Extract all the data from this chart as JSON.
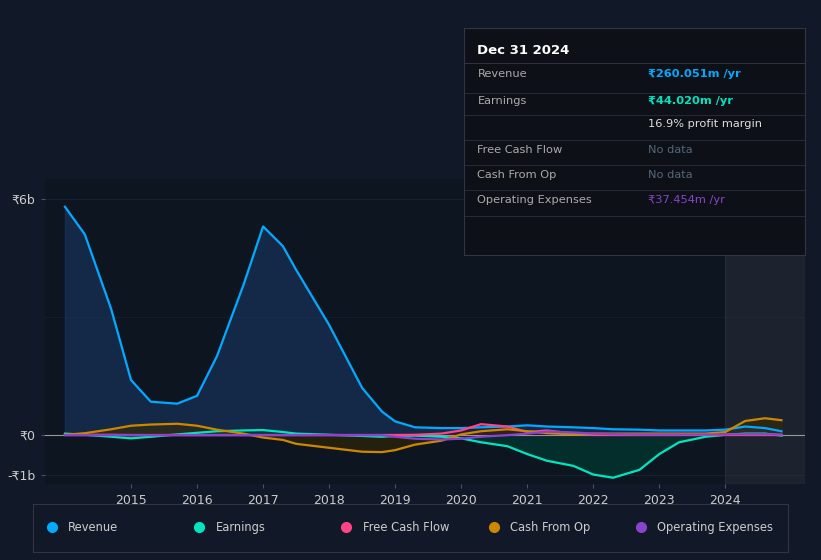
{
  "bg_color": "#111827",
  "plot_bg_color": "#0d1520",
  "grid_color": "#2a3a4a",
  "zero_line_color": "#aaaaaa",
  "ylim": [
    -1250000000.0,
    6500000000.0
  ],
  "xlim": [
    2013.7,
    2025.2
  ],
  "ytick_labels": [
    "-₹1b",
    "₹0",
    "₹6b"
  ],
  "ytick_values": [
    -1000000000.0,
    0,
    6000000000.0
  ],
  "xtick_labels": [
    "2015",
    "2016",
    "2017",
    "2018",
    "2019",
    "2020",
    "2021",
    "2022",
    "2023",
    "2024"
  ],
  "xtick_positions": [
    2015,
    2016,
    2017,
    2018,
    2019,
    2020,
    2021,
    2022,
    2023,
    2024
  ],
  "series": {
    "revenue": {
      "color": "#00aaff",
      "fill_color": "#1a3a6a",
      "label": "Revenue"
    },
    "earnings": {
      "color": "#00e5c0",
      "fill_color": "#003a30",
      "label": "Earnings"
    },
    "fcf": {
      "color": "#ff4488",
      "fill_color": "#3a1530",
      "label": "Free Cash Flow"
    },
    "cashfromop": {
      "color": "#cc8800",
      "fill_color": "#3a2a00",
      "label": "Cash From Op"
    },
    "opex": {
      "color": "#8844cc",
      "fill_color": "#2a1040",
      "label": "Operating Expenses"
    }
  },
  "infobox": {
    "title": "Dec 31 2024",
    "rows": [
      {
        "label": "Revenue",
        "value": "₹260.051m /yr",
        "value_color": "#00aaff",
        "bold": true
      },
      {
        "label": "Earnings",
        "value": "₹44.020m /yr",
        "value_color": "#00e5c0",
        "bold": true
      },
      {
        "label": "",
        "value": "16.9% profit margin",
        "value_color": "#dddddd",
        "bold": false
      },
      {
        "label": "Free Cash Flow",
        "value": "No data",
        "value_color": "#556677",
        "bold": false
      },
      {
        "label": "Cash From Op",
        "value": "No data",
        "value_color": "#556677",
        "bold": false
      },
      {
        "label": "Operating Expenses",
        "value": "₹37.454m /yr",
        "value_color": "#8844cc",
        "bold": false
      }
    ],
    "bg_color": "#0d1117",
    "border_color": "#333344",
    "title_color": "#ffffff",
    "label_color": "#aaaaaa"
  }
}
